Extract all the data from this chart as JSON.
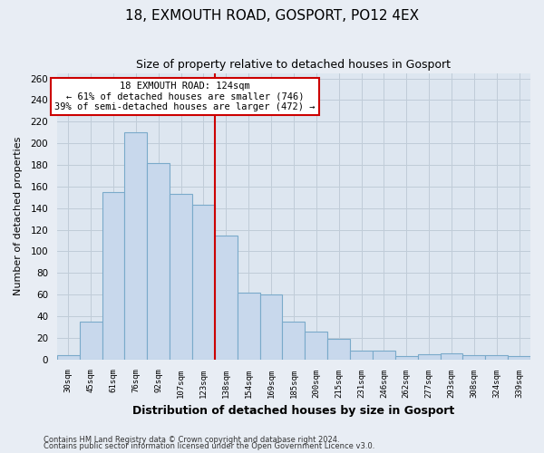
{
  "title": "18, EXMOUTH ROAD, GOSPORT, PO12 4EX",
  "subtitle": "Size of property relative to detached houses in Gosport",
  "xlabel": "Distribution of detached houses by size in Gosport",
  "ylabel": "Number of detached properties",
  "bar_labels": [
    "30sqm",
    "45sqm",
    "61sqm",
    "76sqm",
    "92sqm",
    "107sqm",
    "123sqm",
    "138sqm",
    "154sqm",
    "169sqm",
    "185sqm",
    "200sqm",
    "215sqm",
    "231sqm",
    "246sqm",
    "262sqm",
    "277sqm",
    "293sqm",
    "308sqm",
    "324sqm",
    "339sqm"
  ],
  "bar_values": [
    4,
    35,
    155,
    210,
    182,
    153,
    143,
    115,
    62,
    60,
    35,
    26,
    19,
    8,
    8,
    3,
    5,
    6,
    4,
    4,
    3
  ],
  "bar_color": "#c8d8ec",
  "bar_edgecolor": "#7aaaca",
  "vline_color": "#cc0000",
  "annotation_title": "18 EXMOUTH ROAD: 124sqm",
  "annotation_line1": "← 61% of detached houses are smaller (746)",
  "annotation_line2": "39% of semi-detached houses are larger (472) →",
  "annotation_box_edgecolor": "#cc0000",
  "ylim": [
    0,
    265
  ],
  "yticks": [
    0,
    20,
    40,
    60,
    80,
    100,
    120,
    140,
    160,
    180,
    200,
    220,
    240,
    260
  ],
  "footer1": "Contains HM Land Registry data © Crown copyright and database right 2024.",
  "footer2": "Contains public sector information licensed under the Open Government Licence v3.0.",
  "fig_bg_color": "#e8edf4",
  "plot_bg_color": "#dde6f0",
  "grid_color": "#c0ccd8"
}
